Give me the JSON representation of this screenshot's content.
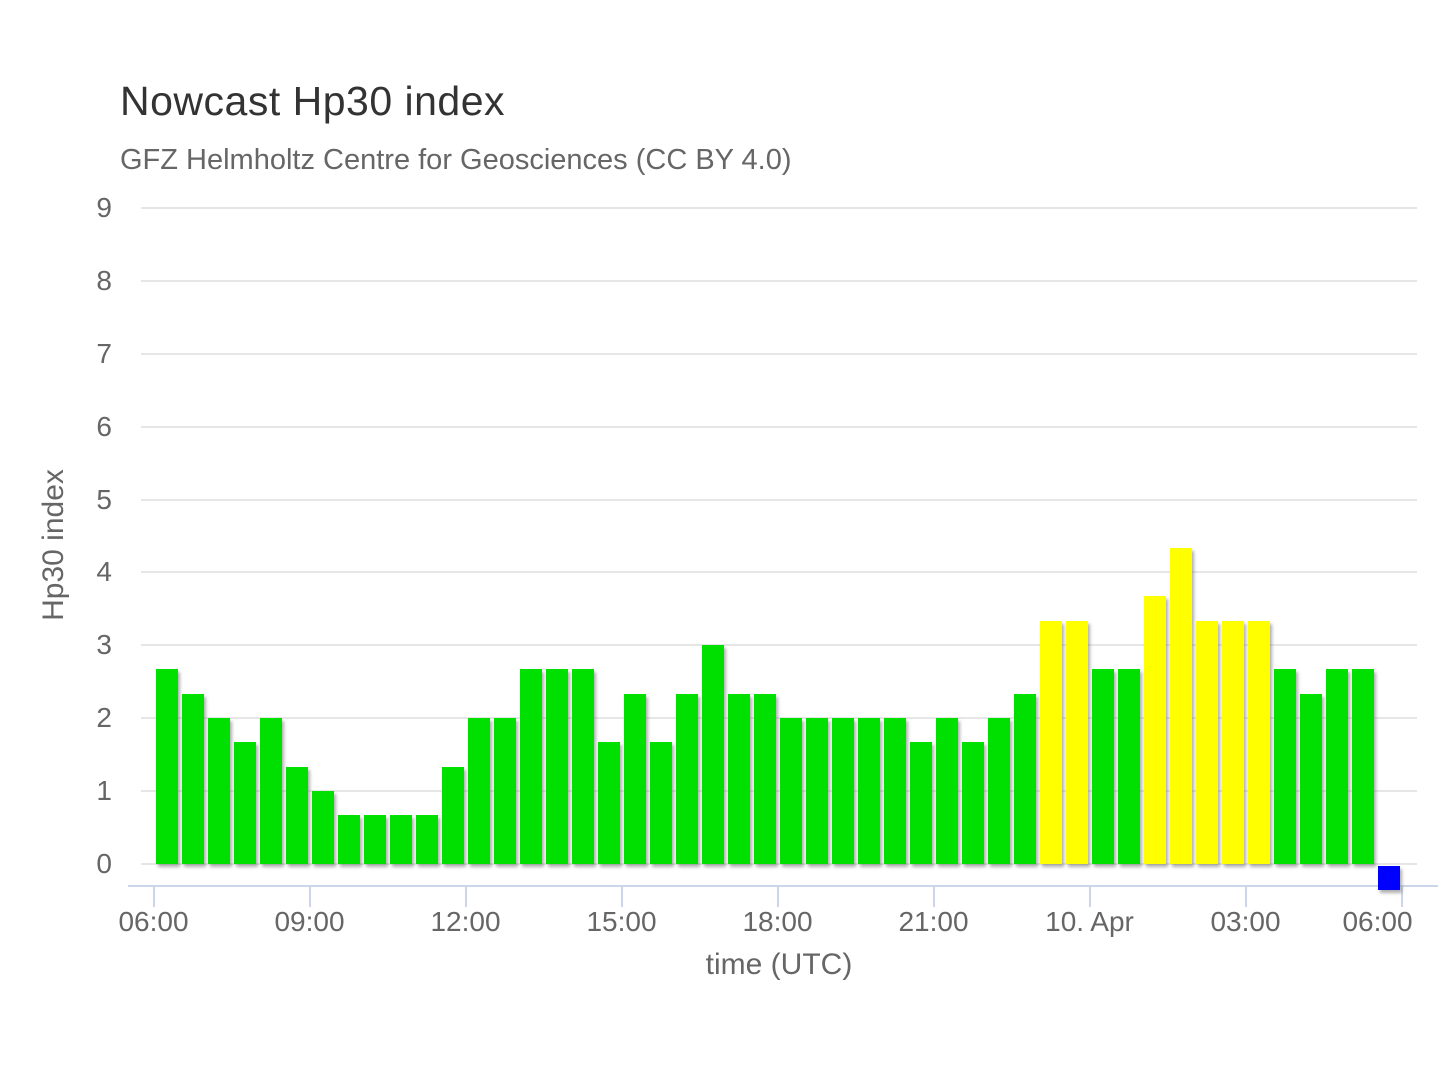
{
  "chart_data": {
    "type": "bar",
    "title": "Nowcast Hp30 index",
    "subtitle": "GFZ Helmholtz Centre for Geosciences (CC BY 4.0)",
    "xlabel": "time (UTC)",
    "ylabel": "Hp30 index",
    "ylim": [
      0,
      9
    ],
    "y_ticks": [
      0,
      1,
      2,
      3,
      4,
      5,
      6,
      7,
      8,
      9
    ],
    "x_tick_labels": [
      "06:00",
      "09:00",
      "12:00",
      "15:00",
      "18:00",
      "21:00",
      "10. Apr",
      "03:00",
      "06:00"
    ],
    "bar_interval_minutes": 30,
    "grid": "horizontal",
    "legend": "none",
    "values": [
      2.67,
      2.33,
      2.0,
      1.67,
      2.0,
      1.33,
      1.0,
      0.67,
      0.67,
      0.67,
      0.67,
      1.33,
      2.0,
      2.0,
      2.67,
      2.67,
      2.67,
      1.67,
      2.33,
      1.67,
      2.33,
      3.0,
      2.33,
      2.33,
      2.0,
      2.0,
      2.0,
      2.0,
      2.0,
      1.67,
      2.0,
      1.67,
      2.0,
      2.33,
      3.33,
      3.33,
      2.67,
      2.67,
      3.67,
      4.33,
      3.33,
      3.33,
      3.33,
      2.67,
      2.33,
      2.67,
      2.67
    ],
    "bar_colors": [
      "green",
      "green",
      "green",
      "green",
      "green",
      "green",
      "green",
      "green",
      "green",
      "green",
      "green",
      "green",
      "green",
      "green",
      "green",
      "green",
      "green",
      "green",
      "green",
      "green",
      "green",
      "green",
      "green",
      "green",
      "green",
      "green",
      "green",
      "green",
      "green",
      "green",
      "green",
      "green",
      "green",
      "green",
      "yellow",
      "yellow",
      "green",
      "green",
      "yellow",
      "yellow",
      "yellow",
      "yellow",
      "yellow",
      "green",
      "green",
      "green",
      "green"
    ],
    "pending_marker": {
      "color": "blue",
      "slot": 47
    },
    "colors": {
      "green": "#00e000",
      "yellow": "#ffff00",
      "blue": "#0000ff"
    }
  }
}
